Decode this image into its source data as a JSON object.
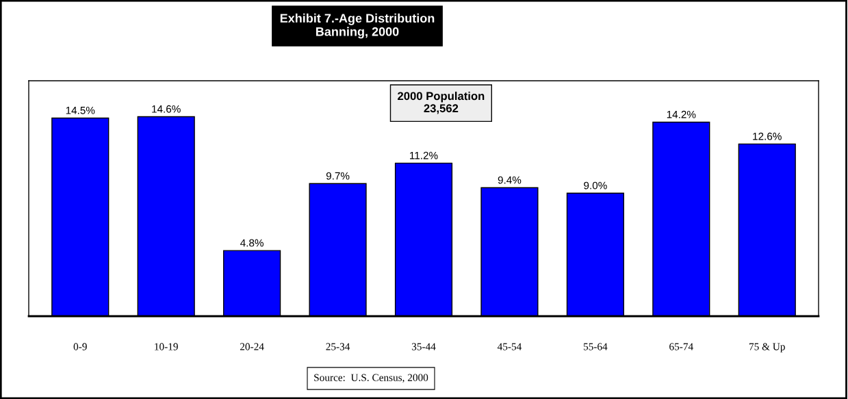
{
  "chart_data": {
    "type": "bar",
    "title": "Exhibit 7.-Age Distribution\nBanning, 2000",
    "categories": [
      "0-9",
      "10-19",
      "20-24",
      "25-34",
      "35-44",
      "45-54",
      "55-64",
      "65-74",
      "75 & Up"
    ],
    "values": [
      14.5,
      14.6,
      4.8,
      9.7,
      11.2,
      9.4,
      9.0,
      14.2,
      12.6
    ],
    "value_labels": [
      "14.5%",
      "14.6%",
      "4.8%",
      "9.7%",
      "11.2%",
      "9.4%",
      "9.0%",
      "14.2%",
      "12.6%"
    ],
    "color": "#0000ff",
    "annotations": [
      "2000 Population\n23,562",
      "Source:  U.S. Census, 2000"
    ]
  }
}
